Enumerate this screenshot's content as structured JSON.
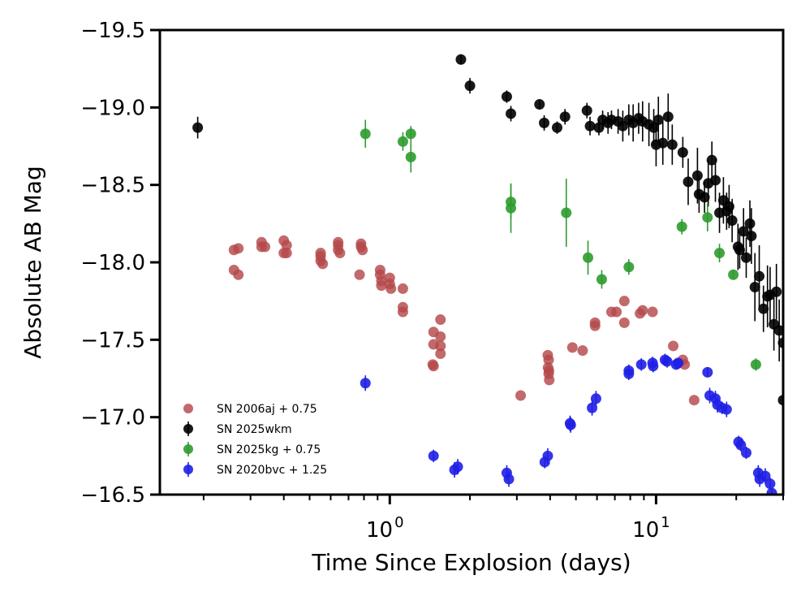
{
  "chart_data": {
    "type": "scatter",
    "xlabel": "Time Since Explosion (days)",
    "ylabel": "Absolute AB Mag",
    "xscale": "log",
    "xlim": [
      0.137,
      30
    ],
    "ylim": [
      -16.5,
      -19.5
    ],
    "y_inverted": true,
    "xticks": [
      {
        "value": 1,
        "base": "10",
        "exp": "0"
      },
      {
        "value": 10,
        "base": "10",
        "exp": "1"
      }
    ],
    "yticks": [
      -19.5,
      -19.0,
      -18.5,
      -18.0,
      -17.5,
      -17.0,
      -16.5
    ],
    "ytick_labels": [
      "−19.5",
      "−19.0",
      "−18.5",
      "−18.0",
      "−17.5",
      "−17.0",
      "−16.5"
    ],
    "grid": false,
    "legend_position": "lower-left",
    "series": [
      {
        "name": "SN 2006aj + 0.75",
        "color": "#b5484a",
        "errorbars": false,
        "points": [
          [
            0.26,
            -18.08
          ],
          [
            0.27,
            -18.09
          ],
          [
            0.26,
            -17.95
          ],
          [
            0.27,
            -17.92
          ],
          [
            0.33,
            -18.13
          ],
          [
            0.33,
            -18.1
          ],
          [
            0.34,
            -18.1
          ],
          [
            0.4,
            -18.14
          ],
          [
            0.41,
            -18.11
          ],
          [
            0.4,
            -18.06
          ],
          [
            0.41,
            -18.06
          ],
          [
            0.55,
            -18.06
          ],
          [
            0.55,
            -18.04
          ],
          [
            0.55,
            -18.01
          ],
          [
            0.56,
            -17.99
          ],
          [
            0.64,
            -18.13
          ],
          [
            0.64,
            -18.11
          ],
          [
            0.64,
            -18.08
          ],
          [
            0.65,
            -18.06
          ],
          [
            0.78,
            -18.12
          ],
          [
            0.78,
            -18.1
          ],
          [
            0.79,
            -18.08
          ],
          [
            0.77,
            -17.92
          ],
          [
            0.92,
            -17.95
          ],
          [
            0.92,
            -17.92
          ],
          [
            0.93,
            -17.88
          ],
          [
            0.93,
            -17.85
          ],
          [
            1.0,
            -17.9
          ],
          [
            1.0,
            -17.86
          ],
          [
            1.01,
            -17.83
          ],
          [
            1.12,
            -17.83
          ],
          [
            1.12,
            -17.71
          ],
          [
            1.12,
            -17.68
          ],
          [
            1.46,
            -17.55
          ],
          [
            1.46,
            -17.47
          ],
          [
            1.45,
            -17.34
          ],
          [
            1.46,
            -17.33
          ],
          [
            1.55,
            -17.63
          ],
          [
            1.55,
            -17.52
          ],
          [
            1.55,
            -17.46
          ],
          [
            1.55,
            -17.41
          ],
          [
            3.1,
            -17.14
          ],
          [
            3.92,
            -17.4
          ],
          [
            3.95,
            -17.37
          ],
          [
            3.93,
            -17.32
          ],
          [
            3.96,
            -17.3
          ],
          [
            3.95,
            -17.28
          ],
          [
            3.97,
            -17.24
          ],
          [
            4.85,
            -17.45
          ],
          [
            5.3,
            -17.43
          ],
          [
            5.9,
            -17.61
          ],
          [
            5.9,
            -17.59
          ],
          [
            6.8,
            -17.68
          ],
          [
            7.1,
            -17.68
          ],
          [
            7.6,
            -17.75
          ],
          [
            7.6,
            -17.61
          ],
          [
            8.7,
            -17.67
          ],
          [
            8.9,
            -17.69
          ],
          [
            9.7,
            -17.68
          ],
          [
            11.6,
            -17.46
          ],
          [
            12.6,
            -17.37
          ],
          [
            12.8,
            -17.34
          ],
          [
            13.9,
            -17.11
          ]
        ]
      },
      {
        "name": "SN 2025wkm",
        "color": "#000000",
        "errorbars": true,
        "points": [
          [
            0.19,
            -18.87,
            0.07
          ],
          [
            1.85,
            -19.31,
            0.03
          ],
          [
            2.0,
            -19.14,
            0.05
          ],
          [
            2.75,
            -19.07,
            0.04
          ],
          [
            2.85,
            -18.96,
            0.05
          ],
          [
            3.65,
            -19.02,
            0.03
          ],
          [
            3.8,
            -18.9,
            0.05
          ],
          [
            4.25,
            -18.87,
            0.04
          ],
          [
            4.55,
            -18.94,
            0.05
          ],
          [
            5.5,
            -18.98,
            0.05
          ],
          [
            5.65,
            -18.88,
            0.06
          ],
          [
            6.1,
            -18.87,
            0.05
          ],
          [
            6.3,
            -18.92,
            0.06
          ],
          [
            6.6,
            -18.9,
            0.07
          ],
          [
            6.8,
            -18.92,
            0.06
          ],
          [
            7.2,
            -18.91,
            0.08
          ],
          [
            7.5,
            -18.88,
            0.1
          ],
          [
            7.9,
            -18.92,
            0.1
          ],
          [
            8.2,
            -18.9,
            0.12
          ],
          [
            8.6,
            -18.93,
            0.1
          ],
          [
            8.9,
            -18.91,
            0.13
          ],
          [
            9.4,
            -18.89,
            0.14
          ],
          [
            9.8,
            -18.87,
            0.12
          ],
          [
            10.2,
            -18.92,
            0.15
          ],
          [
            10.0,
            -18.76,
            0.14
          ],
          [
            10.6,
            -18.77,
            0.14
          ],
          [
            11.1,
            -18.94,
            0.15
          ],
          [
            11.5,
            -18.76,
            0.13
          ],
          [
            12.6,
            -18.71,
            0.1
          ],
          [
            13.2,
            -18.52,
            0.15
          ],
          [
            14.3,
            -18.56,
            0.18
          ],
          [
            14.5,
            -18.44,
            0.12
          ],
          [
            15.2,
            -18.42,
            0.1
          ],
          [
            15.7,
            -18.51,
            0.15
          ],
          [
            16.2,
            -18.66,
            0.12
          ],
          [
            16.7,
            -18.53,
            0.14
          ],
          [
            17.3,
            -18.32,
            0.13
          ],
          [
            17.9,
            -18.4,
            0.15
          ],
          [
            18.4,
            -18.33,
            0.12
          ],
          [
            18.8,
            -18.36,
            0.14
          ],
          [
            19.3,
            -18.27,
            0.14
          ],
          [
            20.3,
            -18.1,
            0.15
          ],
          [
            20.6,
            -18.08,
            0.12
          ],
          [
            21.3,
            -18.2,
            0.15
          ],
          [
            21.8,
            -18.03,
            0.13
          ],
          [
            22.5,
            -18.25,
            0.15
          ],
          [
            22.8,
            -18.17,
            0.18
          ],
          [
            23.5,
            -17.84,
            0.22
          ],
          [
            24.4,
            -17.91,
            0.2
          ],
          [
            25.3,
            -17.7,
            0.15
          ],
          [
            26.2,
            -17.78,
            0.2
          ],
          [
            26.8,
            -17.79,
            0.18
          ],
          [
            27.7,
            -17.6,
            0.17
          ],
          [
            28.3,
            -17.81,
            0.18
          ],
          [
            29.0,
            -17.56,
            0.2
          ],
          [
            30.0,
            -17.48,
            0.2
          ],
          [
            30.0,
            -17.11,
            0.1
          ]
        ]
      },
      {
        "name": "SN 2025kg + 0.75",
        "color": "#2e9b2e",
        "errorbars": true,
        "points": [
          [
            0.81,
            -18.83,
            0.09
          ],
          [
            1.12,
            -18.78,
            0.06
          ],
          [
            1.2,
            -18.83,
            0.05
          ],
          [
            1.2,
            -18.68,
            0.1
          ],
          [
            2.85,
            -18.39,
            0.11
          ],
          [
            2.85,
            -18.35,
            0.16
          ],
          [
            4.6,
            -18.32,
            0.22
          ],
          [
            5.55,
            -18.03,
            0.11
          ],
          [
            6.25,
            -17.89,
            0.06
          ],
          [
            7.9,
            -17.97,
            0.05
          ],
          [
            12.5,
            -18.23,
            0.05
          ],
          [
            15.6,
            -18.29,
            0.09
          ],
          [
            17.3,
            -18.06,
            0.06
          ],
          [
            19.5,
            -17.92,
            0.03
          ],
          [
            23.7,
            -17.34,
            0.04
          ]
        ]
      },
      {
        "name": "SN 2020bvc + 1.25",
        "color": "#1f1fe6",
        "errorbars": true,
        "points": [
          [
            0.81,
            -17.22,
            0.05
          ],
          [
            1.46,
            -16.75,
            0.04
          ],
          [
            1.75,
            -16.66,
            0.05
          ],
          [
            1.8,
            -16.68,
            0.05
          ],
          [
            2.75,
            -16.64,
            0.05
          ],
          [
            2.8,
            -16.6,
            0.05
          ],
          [
            3.82,
            -16.71,
            0.04
          ],
          [
            3.92,
            -16.75,
            0.05
          ],
          [
            4.75,
            -16.96,
            0.05
          ],
          [
            4.78,
            -16.95,
            0.05
          ],
          [
            5.75,
            -17.06,
            0.05
          ],
          [
            5.95,
            -17.12,
            0.05
          ],
          [
            7.9,
            -17.3,
            0.04
          ],
          [
            7.9,
            -17.28,
            0.04
          ],
          [
            8.8,
            -17.34,
            0.04
          ],
          [
            9.7,
            -17.35,
            0.04
          ],
          [
            9.75,
            -17.33,
            0.04
          ],
          [
            10.8,
            -17.37,
            0.04
          ],
          [
            11.0,
            -17.36,
            0.04
          ],
          [
            11.9,
            -17.34,
            0.03
          ],
          [
            12.1,
            -17.35,
            0.03
          ],
          [
            15.6,
            -17.29,
            0.03
          ],
          [
            15.9,
            -17.14,
            0.05
          ],
          [
            16.7,
            -17.12,
            0.05
          ],
          [
            17.0,
            -17.08,
            0.05
          ],
          [
            17.7,
            -17.06,
            0.04
          ],
          [
            18.4,
            -17.05,
            0.05
          ],
          [
            20.4,
            -16.84,
            0.04
          ],
          [
            20.8,
            -16.82,
            0.04
          ],
          [
            21.8,
            -16.77,
            0.04
          ],
          [
            24.2,
            -16.64,
            0.05
          ],
          [
            24.5,
            -16.6,
            0.05
          ],
          [
            25.7,
            -16.62,
            0.05
          ],
          [
            26.8,
            -16.57,
            0.04
          ],
          [
            27.2,
            -16.51,
            0.03
          ]
        ]
      }
    ]
  }
}
